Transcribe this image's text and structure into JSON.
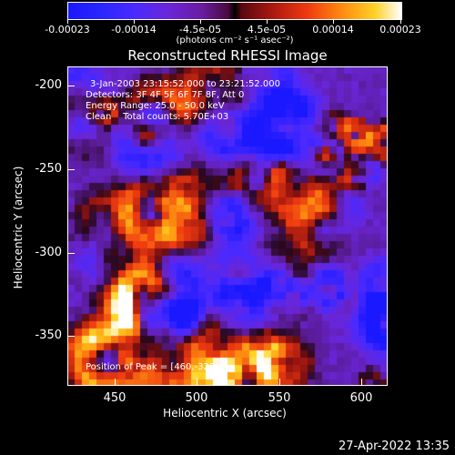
{
  "colorbar": {
    "tick_labels": [
      "-0.00023",
      "-0.00014",
      "-4.5e-05",
      "4.5e-05",
      "0.00014",
      "0.00023"
    ],
    "unit_label": "(photons cm⁻² s⁻¹ asec⁻²)"
  },
  "chart_data": {
    "type": "heatmap",
    "title": "Reconstructed RHESSI Image",
    "xlabel": "Heliocentric X (arcsec)",
    "ylabel": "Heliocentric Y (arcsec)",
    "xlim": [
      420,
      615
    ],
    "ylim": [
      -378,
      -185
    ],
    "xticks": [
      "450",
      "500",
      "550",
      "600"
    ],
    "yticks": [
      "-200",
      "-250",
      "-300",
      "-350"
    ],
    "colorbar_range": [
      -0.00023,
      0.00023
    ],
    "annotations": [
      "3-Jan-2003 23:15:52.000 to 23:21:52.000",
      "Detectors: 3F 4F 5F 6F 7F 8F, Att 0",
      "Energy Range: 25.0 - 50.0 keV",
      "Clean    Total counts: 5.70E+03",
      "Position of Peak = [460,-328]"
    ],
    "peak": {
      "x": 460,
      "y": -328
    }
  },
  "datestamp": "27-Apr-2022 13:35"
}
